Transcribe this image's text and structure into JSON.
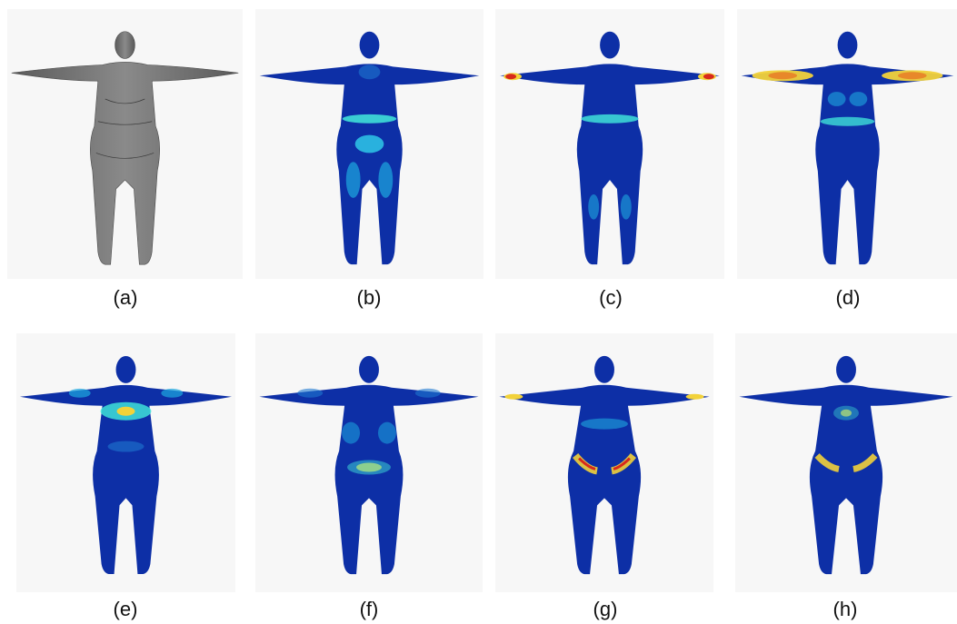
{
  "panels": [
    {
      "label": "(a)"
    },
    {
      "label": "(b)"
    },
    {
      "label": "(c)"
    },
    {
      "label": "(d)"
    },
    {
      "label": "(e)"
    },
    {
      "label": "(f)"
    },
    {
      "label": "(g)"
    },
    {
      "label": "(h)"
    }
  ],
  "colors": {
    "panel_bg": "#f7f7f7",
    "mesh_gray": "#6e6e6e",
    "heat_low": "#0a1f8f",
    "heat_mid": "#1ea8e0",
    "heat_cyan": "#3fe0d8",
    "heat_yellow": "#f2d23a",
    "heat_red": "#d8281c"
  }
}
